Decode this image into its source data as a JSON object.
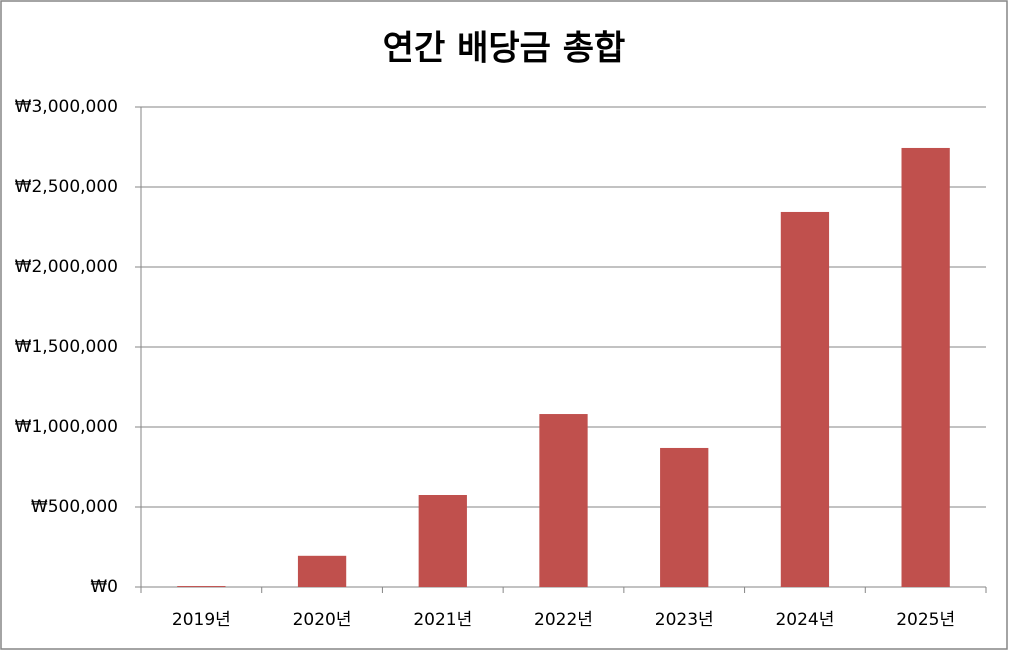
{
  "chart_data": {
    "type": "bar",
    "title": "연간 배당금 총합",
    "categories": [
      "2019년",
      "2020년",
      "2021년",
      "2022년",
      "2023년",
      "2024년",
      "2025년"
    ],
    "values": [
      6000,
      195000,
      575000,
      1081000,
      869000,
      2344000,
      2744000
    ],
    "color": "#c0504d",
    "ylim": [
      0,
      3000000
    ],
    "yticks": [
      {
        "value": 0,
        "label": "₩0"
      },
      {
        "value": 500000,
        "label": "₩500,000"
      },
      {
        "value": 1000000,
        "label": "₩1,000,000"
      },
      {
        "value": 1500000,
        "label": "₩1,500,000"
      },
      {
        "value": 2000000,
        "label": "₩2,000,000"
      },
      {
        "value": 2500000,
        "label": "₩2,500,000"
      },
      {
        "value": 3000000,
        "label": "₩3,000,000"
      }
    ],
    "grid": true
  }
}
